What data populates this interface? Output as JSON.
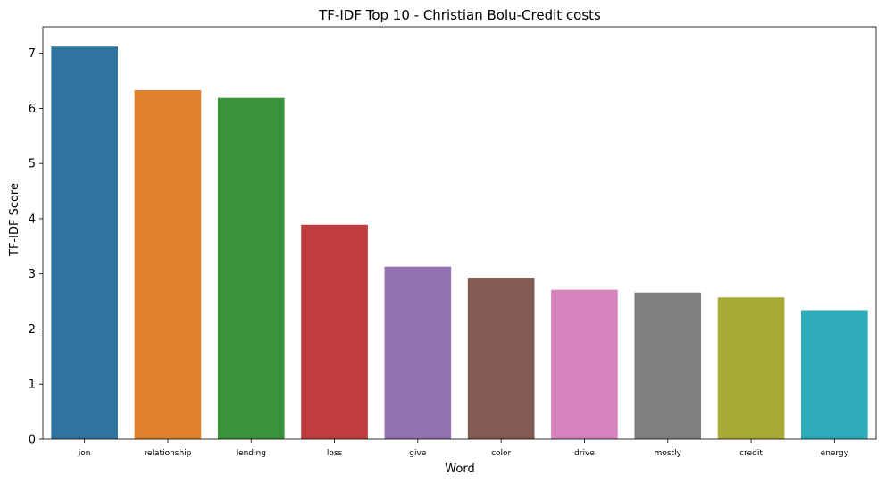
{
  "chart_data": {
    "type": "bar",
    "title": "TF-IDF Top 10 - Christian Bolu-Credit costs",
    "xlabel": "Word",
    "ylabel": "TF-IDF Score",
    "categories": [
      "jon",
      "relationship",
      "lending",
      "loss",
      "give",
      "color",
      "drive",
      "mostly",
      "credit",
      "energy"
    ],
    "values": [
      7.12,
      6.33,
      6.19,
      3.89,
      3.13,
      2.93,
      2.71,
      2.66,
      2.57,
      2.34
    ],
    "colors": [
      "#3274a1",
      "#e1812c",
      "#3a923a",
      "#c03d3e",
      "#9372b2",
      "#845b53",
      "#d684bd",
      "#7f7f7f",
      "#a9aa35",
      "#2eabb8"
    ],
    "yticks": [
      0,
      1,
      2,
      3,
      4,
      5,
      6,
      7
    ],
    "ylim": [
      0,
      7.48
    ],
    "grid": false,
    "legend": false
  }
}
